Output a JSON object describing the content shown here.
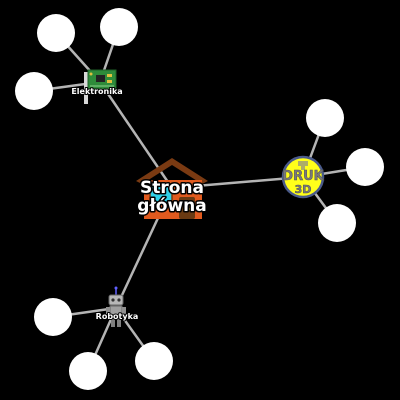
{
  "colors": {
    "background": "#000000",
    "edge": "#b4b4b4",
    "leaf_node": "#ffffff",
    "house_wall": "#e05a1e",
    "house_roof": "#7a3a12",
    "druk_fill": "#ffff1a",
    "druk_ring": "#4a5a8a",
    "pcb": "#2e8b3a"
  },
  "center": {
    "label_line1": "Strona",
    "label_line2": "główna",
    "icon": "house-icon"
  },
  "branches": {
    "elektronika": {
      "label": "Elektronika",
      "icon": "circuit-board-icon",
      "leaf_count": 3
    },
    "druk3d": {
      "label_line1": "DRUK",
      "label_line2": "3D",
      "icon": "3d-print-badge-icon",
      "leaf_count": 3
    },
    "robotyka": {
      "label": "Robotyka",
      "icon": "robot-icon",
      "leaf_count": 3
    }
  }
}
